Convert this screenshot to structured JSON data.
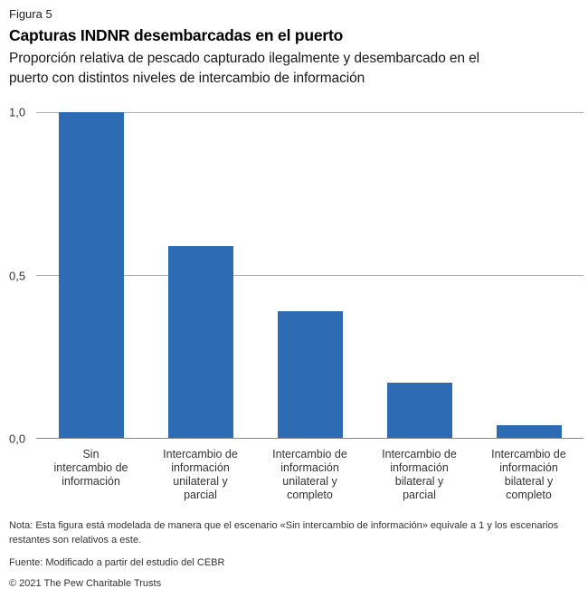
{
  "header": {
    "figure_label": "Figura 5",
    "title": "Capturas INDNR desembarcadas en el puerto",
    "subtitle": "Proporción relativa de pescado capturado ilegalmente y desembarcado en el\npuerto con distintos niveles de intercambio de información"
  },
  "chart_data": {
    "type": "bar",
    "title": "Capturas INDNR desembarcadas en el puerto",
    "subtitle": "Proporción relativa de pescado capturado ilegalmente y desembarcado en el puerto con distintos niveles de intercambio de información",
    "categories": [
      "Sin\nintercambio de\ninformación",
      "Intercambio de\ninformación\nunilateral y\nparcial",
      "Intercambio de\ninformación\nunilateral y\ncompleto",
      "Intercambio de\ninformación\nbilateral y\nparcial",
      "Intercambio de\ninformación\nbilateral y\ncompleto"
    ],
    "values": [
      1.0,
      0.59,
      0.39,
      0.17,
      0.04
    ],
    "xlabel": "",
    "ylabel": "",
    "ylim": [
      0,
      1
    ],
    "yticks_top_to_bottom": [
      "1,0",
      "0,5",
      "0,0"
    ],
    "grid": "horizontal gridlines at 0.0, 0.5, 1.0",
    "legend": "none",
    "bar_color": "#2d6cb4",
    "gridline_color": "#aeaeae",
    "baseline_color": "#8c8c8c"
  },
  "footer": {
    "note": "Nota: Esta figura está modelada de manera que el escenario «Sin intercambio de información» equivale a 1 y los escenarios\nrestantes son relativos a este.",
    "source": "Fuente: Modificado a partir del estudio del CEBR",
    "copyright": "© 2021 The Pew Charitable Trusts"
  }
}
